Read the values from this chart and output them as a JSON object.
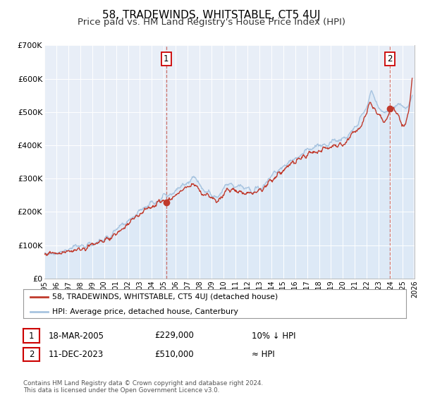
{
  "title": "58, TRADEWINDS, WHITSTABLE, CT5 4UJ",
  "subtitle": "Price paid vs. HM Land Registry's House Price Index (HPI)",
  "ylim": [
    0,
    700000
  ],
  "yticks": [
    0,
    100000,
    200000,
    300000,
    400000,
    500000,
    600000,
    700000
  ],
  "ytick_labels": [
    "£0",
    "£100K",
    "£200K",
    "£300K",
    "£400K",
    "£500K",
    "£600K",
    "£700K"
  ],
  "hpi_color": "#a8c4e0",
  "hpi_fill_color": "#d0e4f5",
  "price_color": "#c0392b",
  "plot_bg_color": "#e8eef7",
  "sale1_date": 2005.21,
  "sale1_price": 229000,
  "sale2_date": 2023.94,
  "sale2_price": 510000,
  "legend_label1": "58, TRADEWINDS, WHITSTABLE, CT5 4UJ (detached house)",
  "legend_label2": "HPI: Average price, detached house, Canterbury",
  "note1_date": "18-MAR-2005",
  "note1_price": "£229,000",
  "note1_rel": "10% ↓ HPI",
  "note2_date": "11-DEC-2023",
  "note2_price": "£510,000",
  "note2_rel": "≈ HPI",
  "footer": "Contains HM Land Registry data © Crown copyright and database right 2024.\nThis data is licensed under the Open Government Licence v3.0.",
  "title_fontsize": 11,
  "subtitle_fontsize": 9.5
}
